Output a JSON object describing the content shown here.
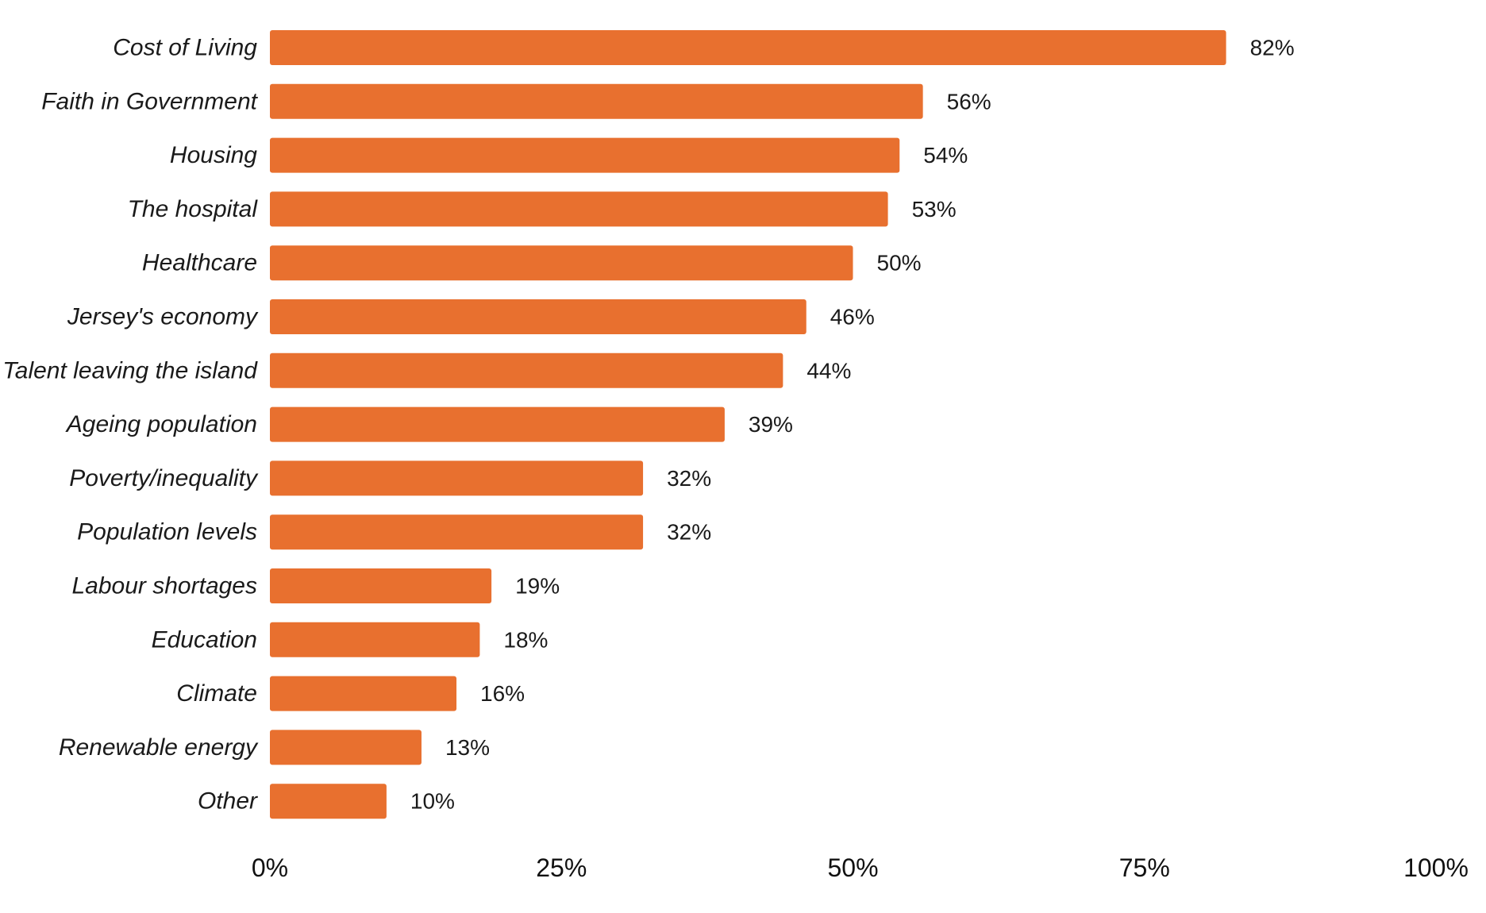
{
  "chart_data": {
    "type": "bar",
    "orientation": "horizontal",
    "title": "",
    "xlabel": "",
    "ylabel": "",
    "xlim": [
      0,
      100
    ],
    "ticks": [
      0,
      25,
      50,
      75,
      100
    ],
    "tick_labels": [
      "0%",
      "25%",
      "50%",
      "75%",
      "100%"
    ],
    "grid": false,
    "bar_color": "#E8702F",
    "categories": [
      "Cost of Living",
      "Faith in Government",
      "Housing",
      "The hospital",
      "Healthcare",
      "Jersey's economy",
      "Talent leaving the island",
      "Ageing population",
      "Poverty/inequality",
      "Population levels",
      "Labour shortages",
      "Education",
      "Climate",
      "Renewable energy",
      "Other"
    ],
    "values": [
      82,
      56,
      54,
      53,
      50,
      46,
      44,
      39,
      32,
      32,
      19,
      18,
      16,
      13,
      10
    ],
    "value_labels": [
      "82%",
      "56%",
      "54%",
      "53%",
      "50%",
      "46%",
      "44%",
      "39%",
      "32%",
      "32%",
      "19%",
      "18%",
      "16%",
      "13%",
      "10%"
    ]
  }
}
